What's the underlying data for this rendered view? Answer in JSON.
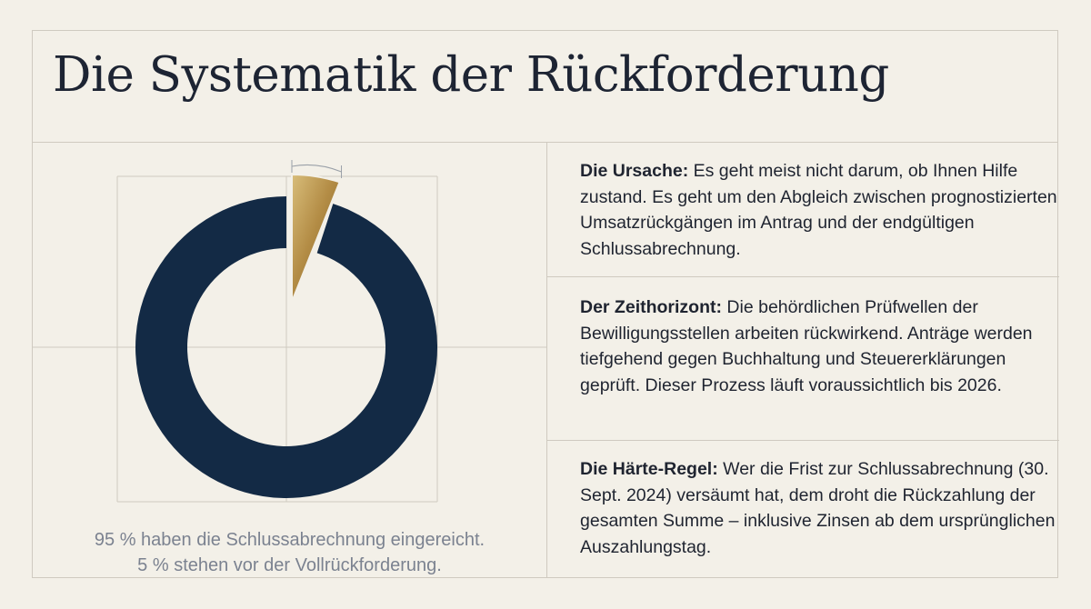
{
  "title": "Die Systematik der Rückforderung",
  "chart_data": {
    "type": "pie",
    "style": "donut",
    "categories": [
      "Schlussabrechnung eingereicht",
      "Vollrückforderung"
    ],
    "values": [
      95,
      5
    ],
    "colors": [
      "#132a45",
      "#b8944f"
    ]
  },
  "caption": {
    "line1": "95 % haben die Schlussabrechnung eingereicht.",
    "line2": "5 % stehen vor der Vollrückforderung."
  },
  "sections": [
    {
      "heading": "Die Ursache:",
      "text": " Es geht meist nicht darum, ob Ihnen Hilfe zustand. Es geht um den Abgleich zwischen prognostizierten Umsatzrückgängen im Antrag und der endgültigen Schlussabrechnung."
    },
    {
      "heading": "Der Zeithorizont:",
      "text": " Die behördlichen Prüfwellen der Bewilligungsstellen arbeiten rückwirkend. Anträge werden tiefgehend gegen Buchhaltung und Steuererklärungen geprüft. Dieser Prozess läuft voraussichtlich bis 2026."
    },
    {
      "heading": "Die Härte-Regel:",
      "text": " Wer die Frist zur Schlussabrechnung (30. Sept. 2024) versäumt hat, dem droht die Rückzahlung der gesamten Summe – inklusive Zinsen ab dem ursprünglichen Auszahlungstag."
    }
  ]
}
